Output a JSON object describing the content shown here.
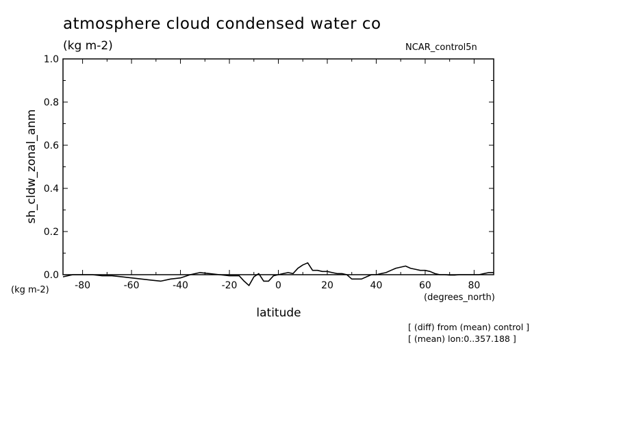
{
  "chart_data": {
    "type": "line",
    "title": "atmosphere cloud condensed water co",
    "units": "(kg m-2)",
    "model": "NCAR_control5n",
    "ylabel": "sh_cldw_zonal_anm",
    "y_units": "(kg m-2)",
    "xlabel": "latitude",
    "x_units": "(degrees_north)",
    "xlim": [
      -88,
      88
    ],
    "ylim": [
      0.0,
      1.0
    ],
    "x_ticks": [
      -80,
      -60,
      -40,
      -20,
      0,
      20,
      40,
      60,
      80
    ],
    "x_tick_labels": [
      "-80",
      "-60",
      "-40",
      "-20",
      "0",
      "20",
      "40",
      "60",
      "80"
    ],
    "y_ticks": [
      0.0,
      0.2,
      0.4,
      0.6,
      0.8,
      1.0
    ],
    "y_tick_labels": [
      "0.0",
      "0.2",
      "0.4",
      "0.6",
      "0.8",
      "1.0"
    ],
    "grid": false,
    "series": [
      {
        "color": "#000000",
        "x": [
          -88,
          -84,
          -80,
          -76,
          -72,
          -68,
          -64,
          -60,
          -56,
          -52,
          -48,
          -44,
          -40,
          -36,
          -32,
          -28,
          -24,
          -20,
          -16,
          -14,
          -12,
          -10,
          -8,
          -6,
          -4,
          -2,
          0,
          2,
          4,
          6,
          8,
          10,
          12,
          14,
          16,
          18,
          20,
          22,
          24,
          26,
          28,
          30,
          32,
          34,
          36,
          38,
          40,
          42,
          44,
          46,
          48,
          50,
          52,
          54,
          56,
          58,
          60,
          62,
          64,
          66,
          68,
          70,
          72,
          74,
          76,
          78,
          80,
          82,
          84,
          86,
          88
        ],
        "y": [
          -0.01,
          0.0,
          0.0,
          0.0,
          -0.005,
          -0.005,
          -0.01,
          -0.015,
          -0.02,
          -0.025,
          -0.03,
          -0.02,
          -0.015,
          0.0,
          0.01,
          0.005,
          0.0,
          -0.005,
          -0.005,
          -0.03,
          -0.05,
          -0.01,
          0.005,
          -0.03,
          -0.03,
          -0.005,
          0.0,
          0.005,
          0.01,
          0.005,
          0.03,
          0.045,
          0.055,
          0.02,
          0.02,
          0.015,
          0.015,
          0.01,
          0.005,
          0.005,
          0.0,
          -0.02,
          -0.02,
          -0.02,
          -0.01,
          0.0,
          0.0,
          0.005,
          0.01,
          0.02,
          0.03,
          0.035,
          0.04,
          0.03,
          0.025,
          0.02,
          0.02,
          0.015,
          0.005,
          0.0,
          0.0,
          -0.002,
          -0.002,
          0.0,
          0.0,
          0.0,
          0.0,
          0.0,
          0.005,
          0.01,
          0.01
        ]
      }
    ],
    "annotations": [
      "[ (diff) from (mean) control ]",
      "[ (mean) lon:0..357.188 ]"
    ]
  }
}
